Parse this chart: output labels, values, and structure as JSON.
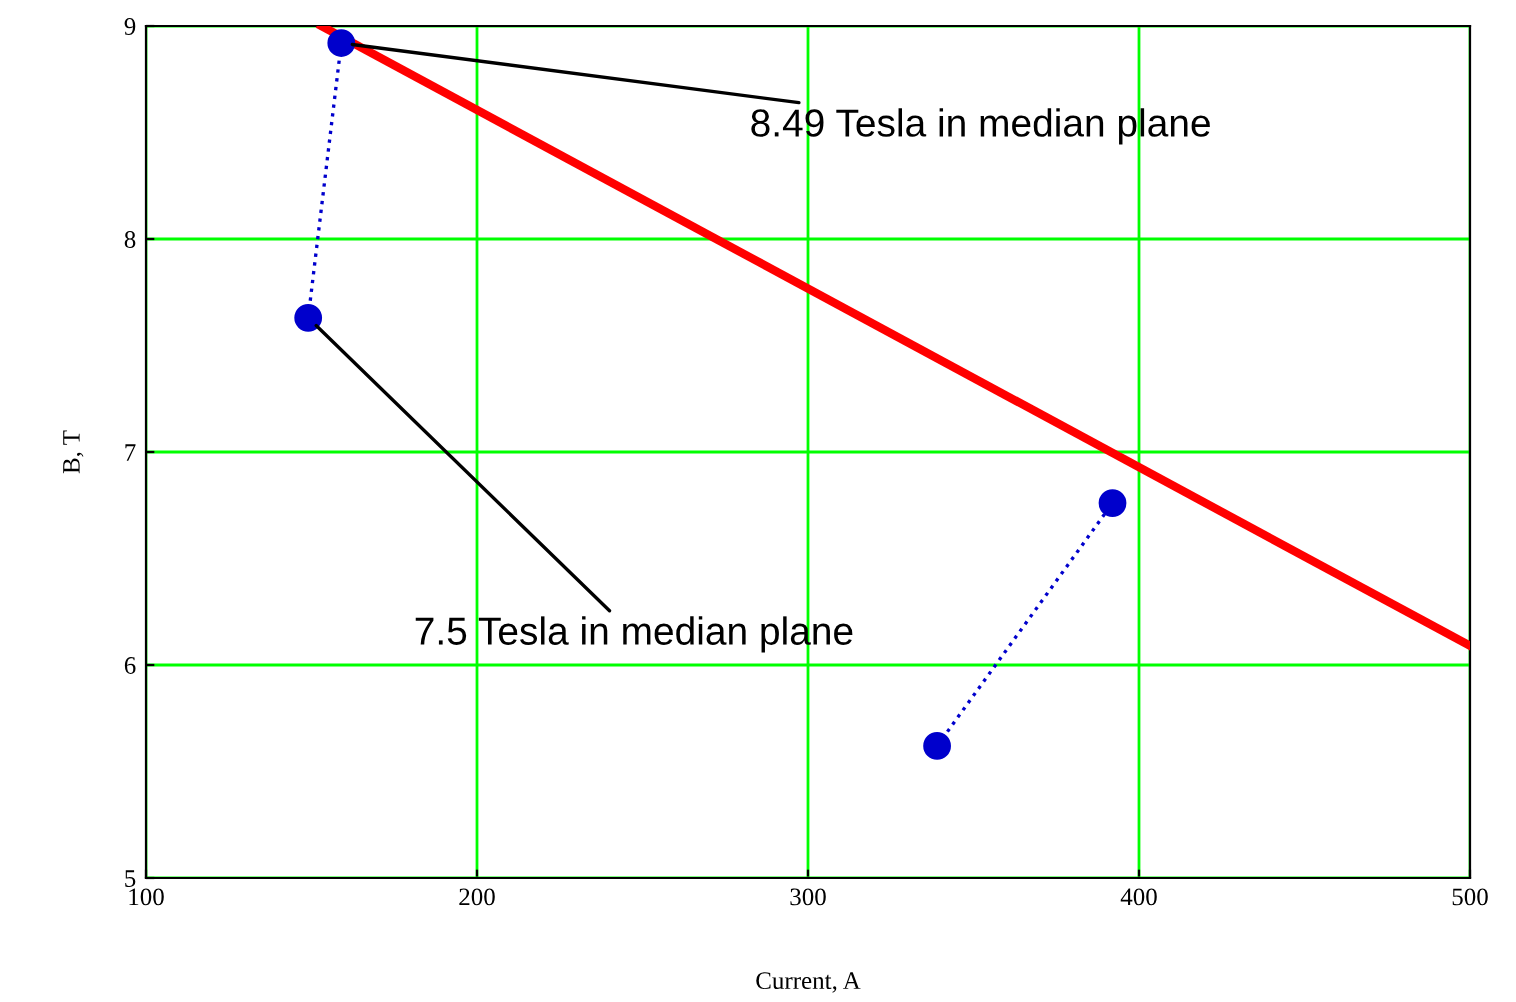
{
  "chart_data": {
    "type": "line",
    "xlabel": "Current, A",
    "ylabel": "B, T",
    "xlim": [
      100,
      500
    ],
    "ylim": [
      5,
      9
    ],
    "xticks": [
      100,
      200,
      300,
      400,
      500
    ],
    "yticks": [
      5,
      6,
      7,
      8,
      9
    ],
    "grid": true,
    "legend": false,
    "series": [
      {
        "x": [
          153,
          500
        ],
        "values": [
          9,
          6.09
        ],
        "color": "#ff0000",
        "marker": "none",
        "line_style": "solid"
      },
      {
        "x": [
          159,
          149
        ],
        "values": [
          8.92,
          7.63
        ],
        "color": "#0000cc",
        "marker": "circle",
        "line_style": "dotted"
      },
      {
        "x": [
          339,
          392
        ],
        "values": [
          5.62,
          6.76
        ],
        "color": "#0000cc",
        "marker": "circle",
        "line_style": "dotted"
      }
    ],
    "annotations": [
      {
        "text": "8.49 Tesla in median plane",
        "x": 159,
        "y": 8.92
      },
      {
        "text": "7.5 Tesla in median plane",
        "x": 149,
        "y": 7.63
      }
    ]
  }
}
